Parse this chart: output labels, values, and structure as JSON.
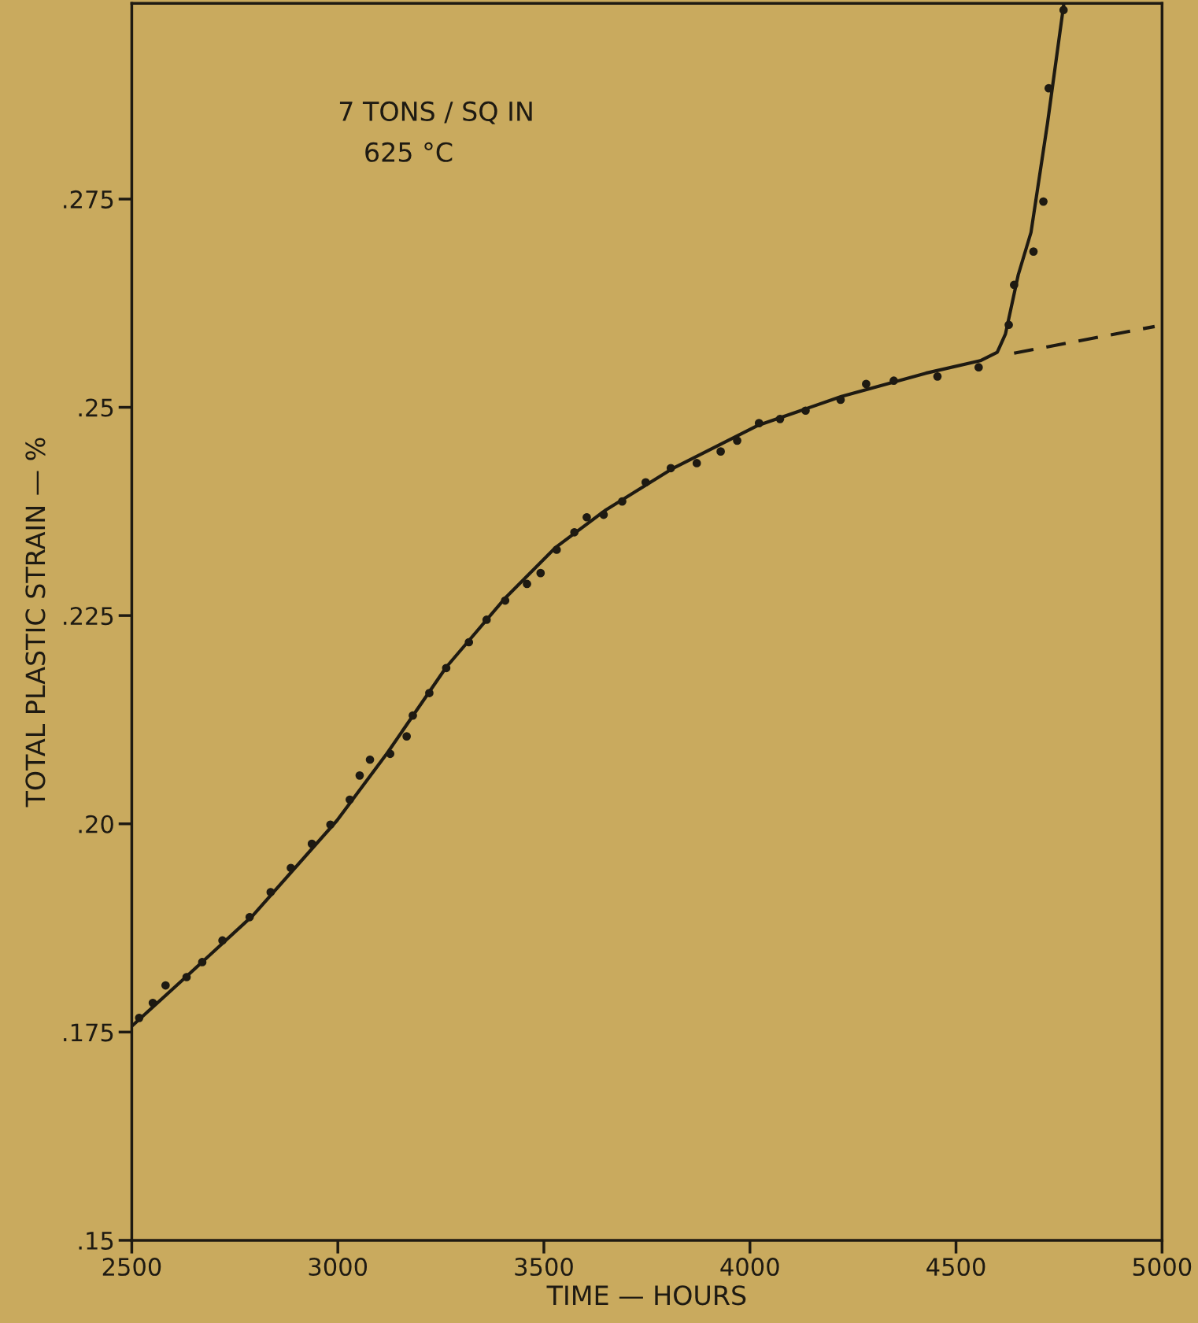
{
  "chart_data": {
    "type": "scatter",
    "xlabel": "TIME — HOURS",
    "ylabel": "TOTAL PLASTIC STRAIN — %",
    "annotations": [
      "7 TONS / SQ IN",
      "625 °C"
    ],
    "xlim": [
      2500,
      5000
    ],
    "ylim": [
      0.15,
      0.2985
    ],
    "xticks": [
      2500,
      3000,
      3500,
      4000,
      4500,
      5000
    ],
    "yticks": [
      {
        "value": 0.15,
        "label": ".15"
      },
      {
        "value": 0.175,
        "label": ".175"
      },
      {
        "value": 0.2,
        "label": ".20"
      },
      {
        "value": 0.225,
        "label": ".225"
      },
      {
        "value": 0.25,
        "label": ".25"
      },
      {
        "value": 0.275,
        "label": ".275"
      }
    ],
    "grid": false,
    "legend": false,
    "series": [
      {
        "color": "#1e1a12",
        "marker": "circle",
        "x": [
          2518,
          2551,
          2582,
          2633,
          2671,
          2720,
          2786,
          2837,
          2886,
          2937,
          2982,
          3029,
          3053,
          3078,
          3127,
          3167,
          3182,
          3222,
          3263,
          3318,
          3361,
          3406,
          3459,
          3492,
          3531,
          3574,
          3604,
          3645,
          3690,
          3747,
          3808,
          3871,
          3929,
          3969,
          4022,
          4073,
          4135,
          4220,
          4282,
          4349,
          4455,
          4555,
          4628,
          4641,
          4688,
          4712,
          4725,
          4761
        ],
        "values": [
          0.1767,
          0.1785,
          0.1806,
          0.1816,
          0.1834,
          0.186,
          0.1888,
          0.1918,
          0.1947,
          0.1976,
          0.1999,
          0.2029,
          0.2058,
          0.2077,
          0.2084,
          0.2105,
          0.213,
          0.2157,
          0.2187,
          0.2218,
          0.2245,
          0.2268,
          0.2288,
          0.2301,
          0.2329,
          0.235,
          0.2368,
          0.2371,
          0.2387,
          0.241,
          0.2427,
          0.2433,
          0.2447,
          0.246,
          0.2481,
          0.2486,
          0.2496,
          0.2509,
          0.2528,
          0.2532,
          0.2537,
          0.2548,
          0.2599,
          0.2647,
          0.2687,
          0.2747,
          0.2883,
          0.2977
        ]
      },
      {
        "type": "line",
        "color": "#1e1a12",
        "line_style": "solid",
        "marker": "none",
        "x": [
          2500,
          2631,
          2794,
          2998,
          3120,
          3263,
          3406,
          3529,
          3651,
          3814,
          4018,
          4222,
          4427,
          4559,
          4600,
          4620,
          4651,
          4682,
          4722,
          4761
        ],
        "values": [
          0.1757,
          0.1816,
          0.189,
          0.2004,
          0.2085,
          0.2188,
          0.2271,
          0.2332,
          0.2377,
          0.2427,
          0.2478,
          0.2513,
          0.2541,
          0.2556,
          0.2566,
          0.2588,
          0.2659,
          0.271,
          0.2841,
          0.2982
        ]
      },
      {
        "type": "line",
        "color": "#1e1a12",
        "line_style": "dashed",
        "marker": "none",
        "x": [
          4641,
          4982
        ],
        "values": [
          0.2565,
          0.2597
        ]
      }
    ]
  }
}
